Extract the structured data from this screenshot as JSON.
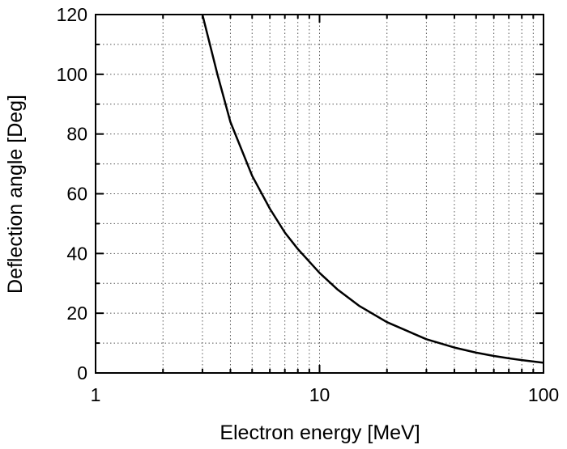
{
  "chart_data": {
    "type": "line",
    "title": "",
    "xlabel": "Electron energy [MeV]",
    "ylabel": "Deflection angle [Deg]",
    "xscale": "log",
    "xlim": [
      1,
      100
    ],
    "ylim": [
      0,
      120
    ],
    "grid": true,
    "legend": "none",
    "x_ticks": [
      1,
      10,
      100
    ],
    "x_tick_labels": [
      "1",
      "10",
      "100"
    ],
    "y_ticks": [
      0,
      20,
      40,
      60,
      80,
      100,
      120
    ],
    "y_tick_labels": [
      "0",
      "20",
      "40",
      "60",
      "80",
      "100",
      "120"
    ],
    "series": [
      {
        "color": "#000000",
        "x": [
          3,
          3.5,
          4,
          5,
          6,
          7,
          8,
          10,
          12,
          15,
          20,
          30,
          40,
          50,
          60,
          70,
          80,
          100
        ],
        "y": [
          120,
          100,
          84,
          66,
          55,
          47,
          41.5,
          33.5,
          28,
          22.5,
          17,
          11.3,
          8.5,
          6.8,
          5.7,
          4.9,
          4.3,
          3.4
        ]
      }
    ]
  }
}
